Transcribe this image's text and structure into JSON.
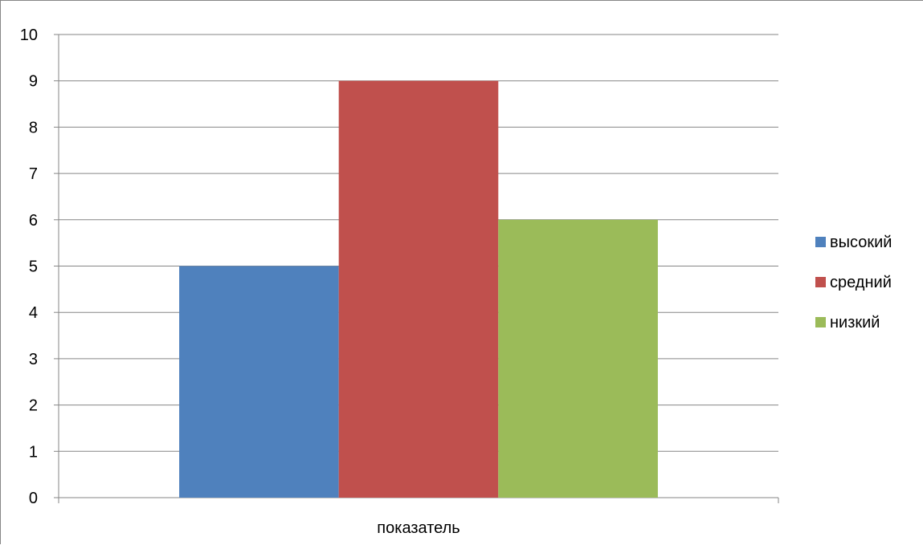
{
  "chart_data": {
    "type": "bar",
    "categories": [
      "показатель"
    ],
    "series": [
      {
        "name": "высокий",
        "values": [
          5
        ],
        "color": "#4F81BD"
      },
      {
        "name": "средний",
        "values": [
          9
        ],
        "color": "#C0504D"
      },
      {
        "name": "низкий",
        "values": [
          6
        ],
        "color": "#9BBB59"
      }
    ],
    "ylim": [
      0,
      10
    ],
    "yticks": [
      "0",
      "1",
      "2",
      "3",
      "4",
      "5",
      "6",
      "7",
      "8",
      "9",
      "10"
    ],
    "grid": true,
    "legend_position": "right",
    "title": "",
    "xlabel": "",
    "ylabel": ""
  }
}
